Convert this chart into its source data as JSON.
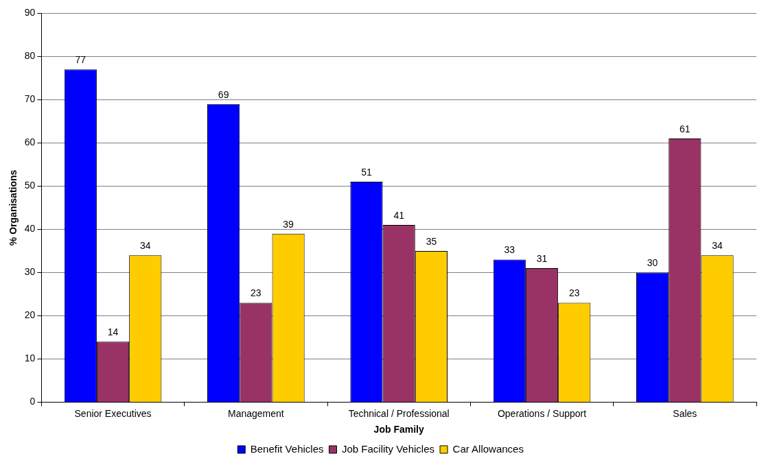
{
  "chart_data": {
    "type": "bar",
    "xlabel": "Job Family",
    "ylabel": "% Organisations",
    "categories": [
      "Senior Executives",
      "Management",
      "Technical / Professional",
      "Operations / Support",
      "Sales"
    ],
    "series": [
      {
        "name": "Benefit Vehicles",
        "color": "#0000ff",
        "values": [
          77,
          69,
          51,
          33,
          30
        ]
      },
      {
        "name": "Job Facility Vehicles",
        "color": "#993366",
        "values": [
          14,
          23,
          41,
          31,
          61
        ]
      },
      {
        "name": "Car Allowances",
        "color": "#ffcc00",
        "values": [
          34,
          39,
          35,
          23,
          34
        ]
      }
    ],
    "ylim": [
      0,
      90
    ],
    "yticks": [
      0,
      10,
      20,
      30,
      40,
      50,
      60,
      70,
      80,
      90
    ],
    "grid": "y",
    "legend": "bottom",
    "data_labels": true
  }
}
